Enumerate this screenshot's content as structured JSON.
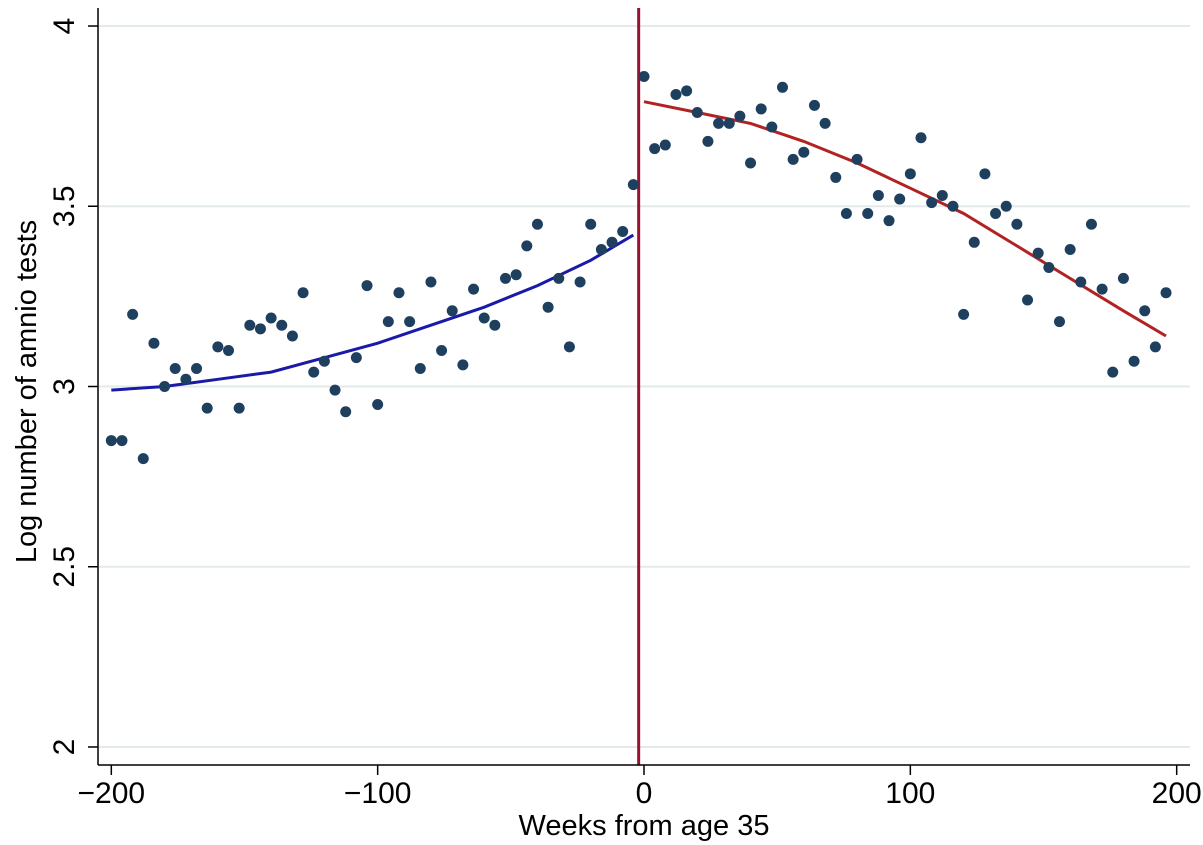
{
  "chart_data": {
    "type": "scatter",
    "title": "",
    "xlabel": "Weeks from age 35",
    "ylabel": "Log number of amnio tests",
    "xlim": [
      -205,
      205
    ],
    "ylim": [
      1.95,
      4.05
    ],
    "xticks": [
      -200,
      -100,
      0,
      100,
      200
    ],
    "xtick_labels": [
      "−200",
      "−100",
      "0",
      "100",
      "200"
    ],
    "yticks": [
      2,
      2.5,
      3,
      3.5,
      4
    ],
    "ytick_labels": [
      "2",
      "2.5",
      "3",
      "3.5",
      "4"
    ],
    "grid": "horizontal",
    "legend": "none",
    "cutoff_x": -2,
    "colors": {
      "points": "#1f3f5f",
      "fit_left": "#1a1aa8",
      "fit_right": "#b22222",
      "cutoff_line": "#9b1030",
      "grid": "#e2ebe9"
    },
    "points": [
      [
        -200,
        2.85
      ],
      [
        -196,
        2.85
      ],
      [
        -192,
        3.2
      ],
      [
        -188,
        2.8
      ],
      [
        -184,
        3.12
      ],
      [
        -180,
        3.0
      ],
      [
        -176,
        3.05
      ],
      [
        -172,
        3.02
      ],
      [
        -168,
        3.05
      ],
      [
        -164,
        2.94
      ],
      [
        -160,
        3.11
      ],
      [
        -156,
        3.1
      ],
      [
        -152,
        2.94
      ],
      [
        -148,
        3.17
      ],
      [
        -144,
        3.16
      ],
      [
        -140,
        3.19
      ],
      [
        -136,
        3.17
      ],
      [
        -132,
        3.14
      ],
      [
        -128,
        3.26
      ],
      [
        -124,
        3.04
      ],
      [
        -120,
        3.07
      ],
      [
        -116,
        2.99
      ],
      [
        -112,
        2.93
      ],
      [
        -108,
        3.08
      ],
      [
        -104,
        3.28
      ],
      [
        -100,
        2.95
      ],
      [
        -96,
        3.18
      ],
      [
        -92,
        3.26
      ],
      [
        -88,
        3.18
      ],
      [
        -84,
        3.05
      ],
      [
        -80,
        3.29
      ],
      [
        -76,
        3.1
      ],
      [
        -72,
        3.21
      ],
      [
        -68,
        3.06
      ],
      [
        -64,
        3.27
      ],
      [
        -60,
        3.19
      ],
      [
        -56,
        3.17
      ],
      [
        -52,
        3.3
      ],
      [
        -48,
        3.31
      ],
      [
        -44,
        3.39
      ],
      [
        -40,
        3.45
      ],
      [
        -36,
        3.22
      ],
      [
        -32,
        3.3
      ],
      [
        -28,
        3.11
      ],
      [
        -24,
        3.29
      ],
      [
        -20,
        3.45
      ],
      [
        -16,
        3.38
      ],
      [
        -12,
        3.4
      ],
      [
        -8,
        3.43
      ],
      [
        -4,
        3.56
      ],
      [
        0,
        3.86
      ],
      [
        4,
        3.66
      ],
      [
        8,
        3.67
      ],
      [
        12,
        3.81
      ],
      [
        16,
        3.82
      ],
      [
        20,
        3.76
      ],
      [
        24,
        3.68
      ],
      [
        28,
        3.73
      ],
      [
        32,
        3.73
      ],
      [
        36,
        3.75
      ],
      [
        40,
        3.62
      ],
      [
        44,
        3.77
      ],
      [
        48,
        3.72
      ],
      [
        52,
        3.83
      ],
      [
        56,
        3.63
      ],
      [
        60,
        3.65
      ],
      [
        64,
        3.78
      ],
      [
        68,
        3.73
      ],
      [
        72,
        3.58
      ],
      [
        76,
        3.48
      ],
      [
        80,
        3.63
      ],
      [
        84,
        3.48
      ],
      [
        88,
        3.53
      ],
      [
        92,
        3.46
      ],
      [
        96,
        3.52
      ],
      [
        100,
        3.59
      ],
      [
        104,
        3.69
      ],
      [
        108,
        3.51
      ],
      [
        112,
        3.53
      ],
      [
        116,
        3.5
      ],
      [
        120,
        3.2
      ],
      [
        124,
        3.4
      ],
      [
        128,
        3.59
      ],
      [
        132,
        3.48
      ],
      [
        136,
        3.5
      ],
      [
        140,
        3.45
      ],
      [
        144,
        3.24
      ],
      [
        148,
        3.37
      ],
      [
        152,
        3.33
      ],
      [
        156,
        3.18
      ],
      [
        160,
        3.38
      ],
      [
        164,
        3.29
      ],
      [
        168,
        3.45
      ],
      [
        172,
        3.27
      ],
      [
        176,
        3.04
      ],
      [
        180,
        3.3
      ],
      [
        184,
        3.07
      ],
      [
        188,
        3.21
      ],
      [
        192,
        3.11
      ],
      [
        196,
        3.26
      ]
    ],
    "fit_left": {
      "x": [
        -200,
        -180,
        -160,
        -140,
        -120,
        -100,
        -80,
        -60,
        -40,
        -20,
        -4
      ],
      "y": [
        2.99,
        3.0,
        3.02,
        3.04,
        3.08,
        3.12,
        3.17,
        3.22,
        3.28,
        3.35,
        3.42
      ]
    },
    "fit_right": {
      "x": [
        0,
        20,
        40,
        60,
        80,
        100,
        120,
        140,
        160,
        180,
        196
      ],
      "y": [
        3.79,
        3.76,
        3.73,
        3.68,
        3.62,
        3.55,
        3.48,
        3.39,
        3.3,
        3.21,
        3.14
      ]
    }
  }
}
